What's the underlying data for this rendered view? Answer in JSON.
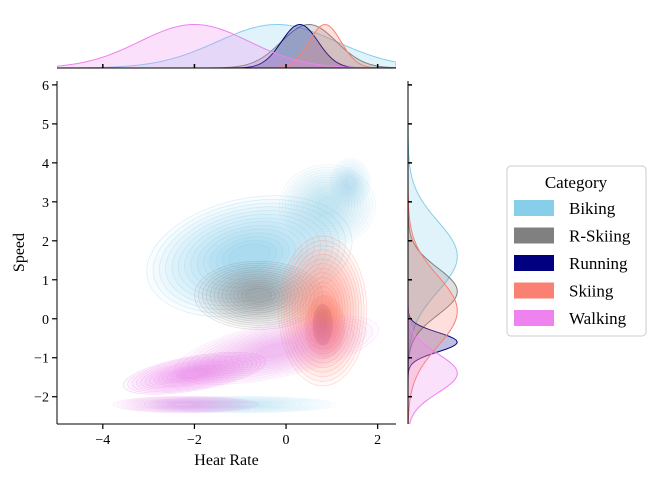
{
  "chart_data": {
    "type": "joint-kde",
    "xlabel": "Hear Rate",
    "ylabel": "Speed",
    "xlim": [
      -5.0,
      2.4
    ],
    "ylim": [
      -2.7,
      6.1
    ],
    "xticks": [
      -4,
      -2,
      0,
      2
    ],
    "yticks": [
      -2,
      -1,
      0,
      1,
      2,
      3,
      4,
      5,
      6
    ],
    "legend": {
      "title": "Category",
      "placement": "center-right",
      "entries": [
        {
          "name": "Biking",
          "color": "#87ceeb"
        },
        {
          "name": "R-Skiing",
          "color": "#808080"
        },
        {
          "name": "Running",
          "color": "#000080"
        },
        {
          "name": "Skiing",
          "color": "#fa8072"
        },
        {
          "name": "Walking",
          "color": "#ee82ee"
        }
      ]
    },
    "series": [
      {
        "name": "Biking",
        "color": "#87ceeb",
        "blobs": [
          {
            "cx": -0.8,
            "cy": 1.6,
            "sx": 1.3,
            "sy": 0.85,
            "w": 1.0,
            "rot": 12
          },
          {
            "cx": 0.9,
            "cy": 2.9,
            "sx": 0.6,
            "sy": 0.6,
            "w": 0.55,
            "rot": 0
          },
          {
            "cx": 1.4,
            "cy": 3.5,
            "sx": 0.25,
            "sy": 0.35,
            "w": 0.4,
            "rot": 0
          },
          {
            "cx": -1.0,
            "cy": -2.2,
            "sx": 1.2,
            "sy": 0.12,
            "w": 0.4,
            "rot": 0
          }
        ],
        "x_marginal": {
          "mode": -0.2,
          "spread": 1.3
        },
        "y_marginal": {
          "mode": 1.6,
          "spread": 0.9
        }
      },
      {
        "name": "R-Skiing",
        "color": "#808080",
        "blobs": [
          {
            "cx": -0.6,
            "cy": 0.6,
            "sx": 0.8,
            "sy": 0.5,
            "w": 0.8,
            "rot": 0
          }
        ],
        "x_marginal": {
          "mode": 0.5,
          "spread": 0.6
        },
        "y_marginal": {
          "mode": 0.7,
          "spread": 0.6
        }
      },
      {
        "name": "Running",
        "color": "#000080",
        "blobs": [
          {
            "cx": 0.8,
            "cy": -0.15,
            "sx": 0.12,
            "sy": 0.3,
            "w": 1.0,
            "rot": 0
          }
        ],
        "x_marginal": {
          "mode": 0.3,
          "spread": 0.4
        },
        "y_marginal": {
          "mode": -0.6,
          "spread": 0.25
        }
      },
      {
        "name": "Skiing",
        "color": "#fa8072",
        "blobs": [
          {
            "cx": 0.8,
            "cy": 0.2,
            "sx": 0.55,
            "sy": 1.1,
            "w": 1.0,
            "rot": 0
          },
          {
            "cx": 0.85,
            "cy": -0.2,
            "sx": 0.25,
            "sy": 0.45,
            "w": 1.0,
            "rot": 0
          }
        ],
        "x_marginal": {
          "mode": 0.85,
          "spread": 0.35
        },
        "y_marginal": {
          "mode": 0.2,
          "spread": 0.9
        }
      },
      {
        "name": "Walking",
        "color": "#ee82ee",
        "blobs": [
          {
            "cx": -2.0,
            "cy": -1.4,
            "sx": 0.9,
            "sy": 0.25,
            "w": 1.0,
            "rot": 10
          },
          {
            "cx": -0.2,
            "cy": -0.8,
            "sx": 1.3,
            "sy": 0.4,
            "w": 0.6,
            "rot": 12
          },
          {
            "cx": -2.2,
            "cy": -2.2,
            "sx": 0.9,
            "sy": 0.12,
            "w": 0.6,
            "rot": 0
          }
        ],
        "x_marginal": {
          "mode": -2.0,
          "spread": 1.2
        },
        "y_marginal": {
          "mode": -1.4,
          "spread": 0.5
        }
      }
    ]
  }
}
